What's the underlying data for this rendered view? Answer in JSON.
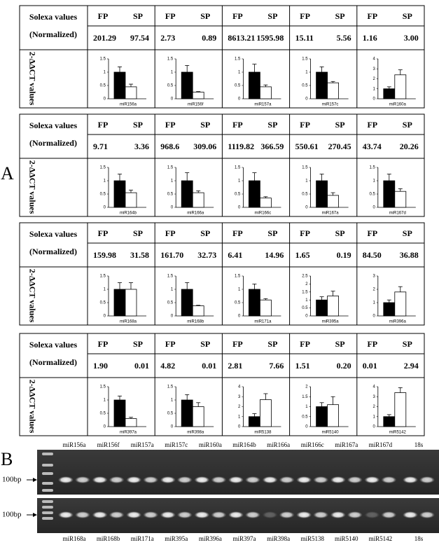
{
  "panel_a": {
    "label": "A",
    "row_labels": {
      "solexa": "Solexa values",
      "normalized": "(Normalized)",
      "fp": "FP",
      "sp": "SP",
      "y_axis": "2-ΔΔCT values"
    },
    "fp_color": "#000000",
    "sp_color": "#ffffff",
    "blocks": [
      {
        "columns": [
          {
            "name": "miR156a",
            "fp": "201.29",
            "sp": "97.54",
            "chart": {
              "ylim": [
                0,
                1.5
              ],
              "yticks": [
                0,
                0.5,
                1,
                1.5
              ],
              "values": [
                1.0,
                0.45
              ],
              "errors": [
                0.2,
                0.1
              ]
            }
          },
          {
            "name": "miR156f",
            "fp": "2.73",
            "sp": "0.89",
            "chart": {
              "ylim": [
                0,
                1.5
              ],
              "yticks": [
                0,
                0.5,
                1,
                1.5
              ],
              "values": [
                1.0,
                0.25
              ],
              "errors": [
                0.25,
                0.02
              ]
            }
          },
          {
            "name": "miR157a",
            "fp": "8613.21",
            "sp": "1595.98",
            "chart": {
              "ylim": [
                0,
                1.5
              ],
              "yticks": [
                0,
                0.5,
                1,
                1.5
              ],
              "values": [
                1.0,
                0.45
              ],
              "errors": [
                0.3,
                0.07
              ]
            }
          },
          {
            "name": "miR157c",
            "fp": "15.11",
            "sp": "5.56",
            "chart": {
              "ylim": [
                0,
                1.5
              ],
              "yticks": [
                0,
                0.5,
                1,
                1.5
              ],
              "values": [
                1.0,
                0.6
              ],
              "errors": [
                0.2,
                0.05
              ]
            }
          },
          {
            "name": "miR160a",
            "fp": "1.16",
            "sp": "3.00",
            "chart": {
              "ylim": [
                0,
                4
              ],
              "yticks": [
                0,
                1,
                2,
                3,
                4
              ],
              "values": [
                1.0,
                2.4
              ],
              "errors": [
                0.2,
                0.5
              ]
            }
          }
        ]
      },
      {
        "columns": [
          {
            "name": "miR164b",
            "fp": "9.71",
            "sp": "3.36",
            "chart": {
              "ylim": [
                0,
                1.5
              ],
              "yticks": [
                0,
                0.5,
                1,
                1.5
              ],
              "values": [
                1.0,
                0.55
              ],
              "errors": [
                0.25,
                0.1
              ]
            }
          },
          {
            "name": "miR166a",
            "fp": "968.6",
            "sp": "309.06",
            "chart": {
              "ylim": [
                0,
                1.5
              ],
              "yticks": [
                0,
                0.5,
                1,
                1.5
              ],
              "values": [
                1.0,
                0.55
              ],
              "errors": [
                0.3,
                0.07
              ]
            }
          },
          {
            "name": "miR166c",
            "fp": "1119.82",
            "sp": "366.59",
            "chart": {
              "ylim": [
                0,
                1.5
              ],
              "yticks": [
                0,
                0.5,
                1,
                1.5
              ],
              "values": [
                1.0,
                0.35
              ],
              "errors": [
                0.3,
                0.05
              ]
            }
          },
          {
            "name": "miR167a",
            "fp": "550.61",
            "sp": "270.45",
            "chart": {
              "ylim": [
                0,
                1.5
              ],
              "yticks": [
                0,
                0.5,
                1,
                1.5
              ],
              "values": [
                1.0,
                0.45
              ],
              "errors": [
                0.25,
                0.1
              ]
            }
          },
          {
            "name": "miR167d",
            "fp": "43.74",
            "sp": "20.26",
            "chart": {
              "ylim": [
                0,
                1.5
              ],
              "yticks": [
                0,
                0.5,
                1,
                1.5
              ],
              "values": [
                1.0,
                0.6
              ],
              "errors": [
                0.25,
                0.1
              ]
            }
          }
        ]
      },
      {
        "columns": [
          {
            "name": "miR168a",
            "fp": "159.98",
            "sp": "31.58",
            "chart": {
              "ylim": [
                0,
                1.5
              ],
              "yticks": [
                0,
                0.5,
                1,
                1.5
              ],
              "values": [
                1.0,
                1.0
              ],
              "errors": [
                0.25,
                0.25
              ]
            }
          },
          {
            "name": "miR168b",
            "fp": "161.70",
            "sp": "32.73",
            "chart": {
              "ylim": [
                0,
                1.5
              ],
              "yticks": [
                0,
                0.5,
                1,
                1.5
              ],
              "values": [
                1.0,
                0.38
              ],
              "errors": [
                0.25,
                0.02
              ]
            }
          },
          {
            "name": "miR171a",
            "fp": "6.41",
            "sp": "14.96",
            "chart": {
              "ylim": [
                0,
                1.5
              ],
              "yticks": [
                0,
                0.5,
                1,
                1.5
              ],
              "values": [
                1.0,
                0.6
              ],
              "errors": [
                0.2,
                0.05
              ]
            }
          },
          {
            "name": "miR395a",
            "fp": "1.65",
            "sp": "0.19",
            "chart": {
              "ylim": [
                0,
                2.5
              ],
              "yticks": [
                0,
                0.5,
                1,
                1.5,
                2,
                2.5
              ],
              "values": [
                1.0,
                1.25
              ],
              "errors": [
                0.2,
                0.3
              ]
            }
          },
          {
            "name": "miR396a",
            "fp": "84.50",
            "sp": "36.88",
            "chart": {
              "ylim": [
                0,
                3
              ],
              "yticks": [
                0,
                1,
                2,
                3
              ],
              "values": [
                1.0,
                1.8
              ],
              "errors": [
                0.2,
                0.4
              ]
            }
          }
        ]
      },
      {
        "columns": [
          {
            "name": "miR397a",
            "fp": "1.90",
            "sp": "0.01",
            "chart": {
              "ylim": [
                0,
                1.5
              ],
              "yticks": [
                0,
                0.5,
                1,
                1.5
              ],
              "values": [
                1.0,
                0.3
              ],
              "errors": [
                0.15,
                0.05
              ]
            }
          },
          {
            "name": "miR398a",
            "fp": "4.82",
            "sp": "0.01",
            "chart": {
              "ylim": [
                0,
                1.5
              ],
              "yticks": [
                0,
                0.5,
                1,
                1.5
              ],
              "values": [
                1.0,
                0.75
              ],
              "errors": [
                0.2,
                0.15
              ]
            }
          },
          {
            "name": "miR5138",
            "fp": "2.81",
            "sp": "7.66",
            "chart": {
              "ylim": [
                0,
                4
              ],
              "yticks": [
                0,
                1,
                2,
                3,
                4
              ],
              "values": [
                1.0,
                2.7
              ],
              "errors": [
                0.3,
                0.6
              ]
            }
          },
          {
            "name": "miR5140",
            "fp": "1.51",
            "sp": "0.20",
            "chart": {
              "ylim": [
                0,
                2
              ],
              "yticks": [
                0,
                0.5,
                1,
                1.5,
                2
              ],
              "values": [
                1.0,
                1.1
              ],
              "errors": [
                0.2,
                0.4
              ]
            }
          },
          {
            "name": "miR5142",
            "fp": "0.01",
            "sp": "2.94",
            "chart": {
              "ylim": [
                0,
                4
              ],
              "yticks": [
                0,
                1,
                2,
                3,
                4
              ],
              "values": [
                1.0,
                3.4
              ],
              "errors": [
                0.2,
                0.5
              ]
            }
          }
        ]
      }
    ]
  },
  "panel_b": {
    "label": "B",
    "marker": "100bp",
    "gels": [
      {
        "lanes": [
          "miR156a",
          "miR156f",
          "miR157a",
          "miR157c",
          "miR160a",
          "miR164b",
          "miR166a",
          "miR166c",
          "miR167a",
          "miR167d",
          "18s"
        ]
      },
      {
        "lanes": [
          "miR168a",
          "miR168b",
          "miR171a",
          "miR395a",
          "miR396a",
          "miR397a",
          "miR398a",
          "miR5138",
          "miR5140",
          "miR5142",
          "18s"
        ]
      }
    ]
  }
}
